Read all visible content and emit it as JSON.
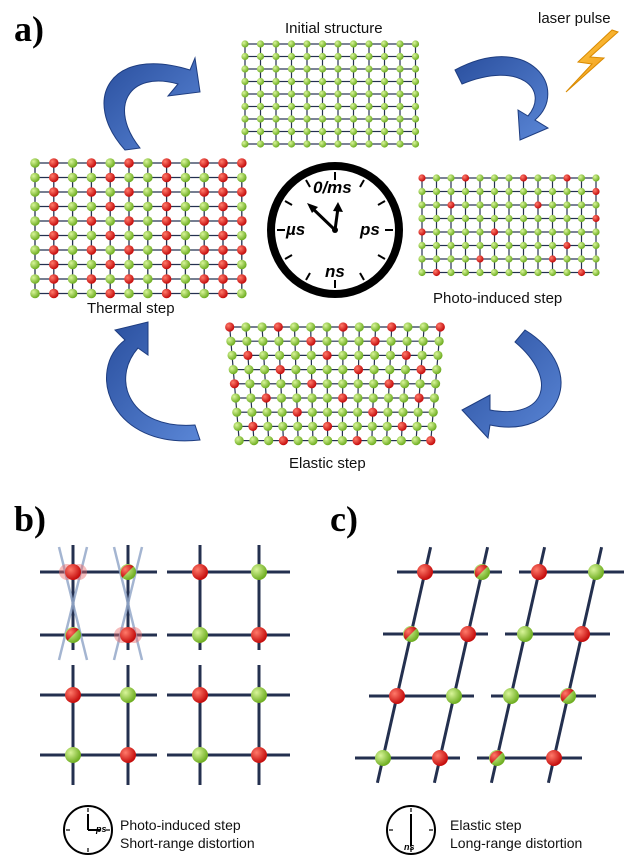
{
  "panels": {
    "a": {
      "letter": "a)"
    },
    "b": {
      "letter": "b)"
    },
    "c": {
      "letter": "c)"
    }
  },
  "cycle": {
    "initial_label": "Initial structure",
    "laser_label": "laser pulse",
    "photo_label": "Photo-induced step",
    "elastic_label": "Elastic step",
    "thermal_label": "Thermal step"
  },
  "clock": {
    "top": "0/ms",
    "left": "µs",
    "right": "ps",
    "bottom": "ns"
  },
  "legend_b": {
    "clock_tag": "ps",
    "line1": "Photo-induced step",
    "line2": "Short-range distortion"
  },
  "legend_c": {
    "clock_tag": "ns",
    "line1": "Elastic step",
    "line2": "Long-range distortion"
  },
  "colors": {
    "arrow_blue": "#3a5fae",
    "bond": "#1f2a4a",
    "node_green": "#8fce3a",
    "node_red": "#e21616",
    "laser": "#f2a81d"
  }
}
